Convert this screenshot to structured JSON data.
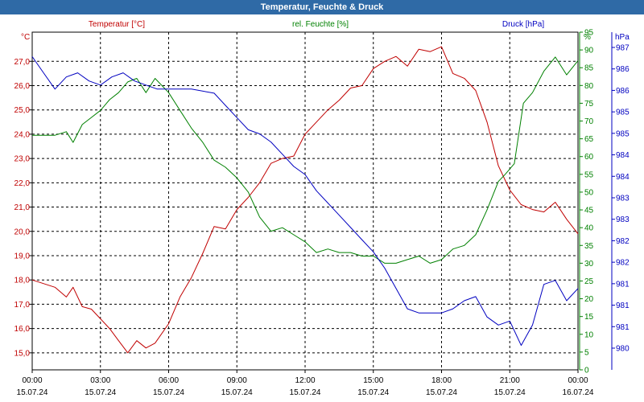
{
  "window": {
    "title": "Temperatur, Feuchte & Druck"
  },
  "chart_data": {
    "type": "line",
    "title": "Temperatur, Feuchte & Druck",
    "grid": true,
    "x": {
      "ticks": [
        {
          "time": "00:00",
          "date": "15.07.24"
        },
        {
          "time": "03:00",
          "date": "15.07.24"
        },
        {
          "time": "06:00",
          "date": "15.07.24"
        },
        {
          "time": "09:00",
          "date": "15.07.24"
        },
        {
          "time": "12:00",
          "date": "15.07.24"
        },
        {
          "time": "15:00",
          "date": "15.07.24"
        },
        {
          "time": "18:00",
          "date": "15.07.24"
        },
        {
          "time": "21:00",
          "date": "15.07.24"
        },
        {
          "time": "00:00",
          "date": "16.07.24"
        }
      ],
      "range_hours": [
        0,
        24
      ]
    },
    "axes": {
      "temperature": {
        "label": "Temperatur [°C]",
        "unit": "°C",
        "color": "#c00000",
        "side": "left",
        "ylim": [
          14.3,
          28.2
        ],
        "ticks": [
          "15,0",
          "16,0",
          "17,0",
          "18,0",
          "19,0",
          "20,0",
          "21,0",
          "22,0",
          "23,0",
          "24,0",
          "25,0",
          "26,0",
          "27,0"
        ]
      },
      "humidity": {
        "label": "rel. Feuchte [%]",
        "unit": "%",
        "color": "#008000",
        "side": "right-inner",
        "ylim": [
          0,
          95
        ],
        "ticks": [
          "0",
          "5",
          "10",
          "15",
          "20",
          "25",
          "30",
          "35",
          "40",
          "45",
          "50",
          "55",
          "60",
          "65",
          "70",
          "75",
          "80",
          "85",
          "90",
          "95"
        ]
      },
      "pressure": {
        "label": "Druck [hPa]",
        "unit": "hPa",
        "color": "#0000c0",
        "side": "right-outer",
        "ylim": [
          979.3,
          987.6
        ],
        "ticks": [
          "980",
          "981",
          "981",
          "981",
          "982",
          "982",
          "983",
          "983",
          "984",
          "984",
          "985",
          "985",
          "986",
          "986",
          "987"
        ]
      }
    },
    "series": [
      {
        "name": "Temperatur [°C]",
        "axis": "temperature",
        "color": "#c00000",
        "x": [
          0,
          1,
          1.5,
          1.8,
          2.2,
          2.6,
          3.0,
          3.4,
          3.8,
          4.2,
          4.6,
          5.0,
          5.4,
          6.0,
          6.5,
          7.0,
          7.5,
          8.0,
          8.5,
          9.0,
          9.5,
          10.0,
          10.5,
          11.0,
          11.5,
          12.0,
          12.5,
          13.0,
          13.5,
          14.0,
          14.5,
          15.0,
          15.5,
          16.0,
          16.5,
          17.0,
          17.5,
          18.0,
          18.5,
          19.0,
          19.5,
          20.0,
          20.5,
          21.0,
          21.5,
          22.0,
          22.5,
          23.0,
          23.5,
          24.0
        ],
        "y": [
          18.0,
          17.7,
          17.3,
          17.7,
          16.9,
          16.8,
          16.4,
          16.0,
          15.5,
          15.0,
          15.5,
          15.2,
          15.4,
          16.2,
          17.3,
          18.1,
          19.1,
          20.2,
          20.1,
          20.9,
          21.4,
          22.0,
          22.8,
          23.0,
          23.1,
          24.0,
          24.5,
          25.0,
          25.4,
          25.9,
          26.0,
          26.7,
          27.0,
          27.2,
          26.8,
          27.5,
          27.4,
          27.6,
          26.5,
          26.3,
          25.8,
          24.5,
          22.7,
          21.7,
          21.1,
          20.9,
          20.8,
          21.2,
          20.5,
          19.9
        ]
      },
      {
        "name": "rel. Feuchte [%]",
        "axis": "humidity",
        "color": "#008000",
        "x": [
          0,
          0.5,
          1.0,
          1.5,
          1.8,
          2.2,
          2.6,
          3.0,
          3.4,
          3.8,
          4.2,
          4.6,
          5.0,
          5.4,
          6.0,
          6.5,
          7.0,
          7.5,
          8.0,
          8.5,
          9.0,
          9.5,
          10.0,
          10.5,
          11.0,
          11.5,
          12.0,
          12.5,
          13.0,
          13.5,
          14.0,
          14.5,
          15.0,
          15.5,
          16.0,
          16.5,
          17.0,
          17.5,
          18.0,
          18.5,
          19.0,
          19.5,
          20.0,
          20.5,
          20.8,
          21.2,
          21.6,
          22.0,
          22.5,
          23.0,
          23.5,
          24.0
        ],
        "y": [
          66,
          66,
          66,
          67,
          64,
          69,
          71,
          73,
          76,
          78,
          81,
          82,
          78,
          82,
          78,
          73,
          68,
          64,
          59,
          57,
          54,
          50,
          43,
          39,
          40,
          38,
          36,
          33,
          34,
          33,
          33,
          32,
          32,
          30,
          30,
          31,
          32,
          30,
          31,
          34,
          35,
          38,
          45,
          53,
          55,
          58,
          75,
          78,
          84,
          88,
          83,
          87
        ]
      },
      {
        "name": "Druck [hPa]",
        "axis": "pressure",
        "color": "#0000c0",
        "x": [
          0,
          0.5,
          1.0,
          1.5,
          2.0,
          2.5,
          3.0,
          3.5,
          4.0,
          4.5,
          5.0,
          5.5,
          6.0,
          7.0,
          8.0,
          8.5,
          9.0,
          9.5,
          10.0,
          10.5,
          11.0,
          11.5,
          12.0,
          12.5,
          13.0,
          13.5,
          14.0,
          14.5,
          15.0,
          15.5,
          16.0,
          16.5,
          17.0,
          17.5,
          18.0,
          18.5,
          19.0,
          19.5,
          20.0,
          20.5,
          21.0,
          21.5,
          22.0,
          22.5,
          23.0,
          23.5,
          24.0
        ],
        "y": [
          987.0,
          986.6,
          986.2,
          986.5,
          986.6,
          986.4,
          986.3,
          986.5,
          986.6,
          986.4,
          986.3,
          986.2,
          986.2,
          986.2,
          986.1,
          985.8,
          985.5,
          985.2,
          985.1,
          984.9,
          984.6,
          984.3,
          984.1,
          983.7,
          983.4,
          983.1,
          982.8,
          982.5,
          982.2,
          981.8,
          981.3,
          980.8,
          980.7,
          980.7,
          980.7,
          980.8,
          981.0,
          981.1,
          980.6,
          980.4,
          980.5,
          979.9,
          980.4,
          981.4,
          981.5,
          981.0,
          981.3
        ]
      }
    ]
  }
}
